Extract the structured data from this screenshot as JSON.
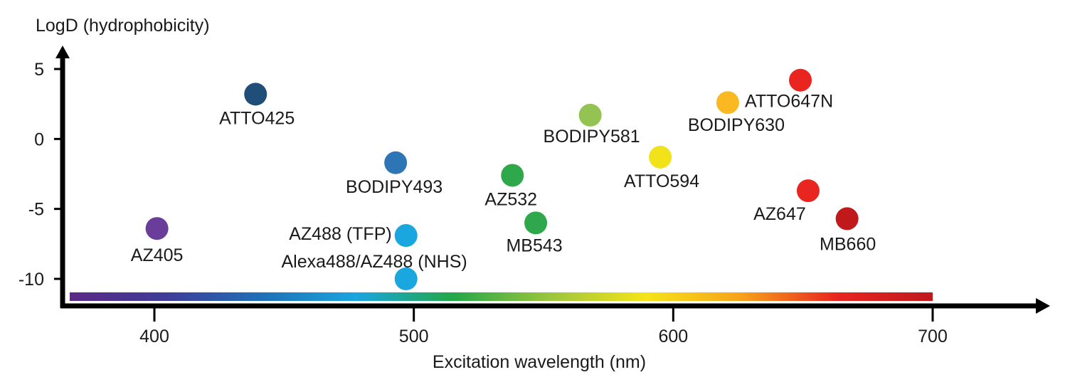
{
  "chart_data": {
    "type": "scatter",
    "xlabel": "Excitation wavelength (nm)",
    "ylabel": "LogD (hydrophobicity)",
    "xlim": [
      365,
      745
    ],
    "ylim": [
      -12,
      6
    ],
    "x_ticks": [
      400,
      500,
      600,
      700
    ],
    "y_ticks": [
      5,
      0,
      -5,
      -10
    ],
    "grid": false,
    "spectrum_bar": {
      "x_range": [
        365,
        700
      ],
      "colors": [
        "#5b2a86",
        "#3f3c99",
        "#1f6fb8",
        "#1aa6df",
        "#23a748",
        "#9bc53d",
        "#f5e419",
        "#f7a21b",
        "#e8251f",
        "#c0191c"
      ]
    },
    "points": [
      {
        "label": "AZ405",
        "x": 401,
        "y": -6.4,
        "color": "#6a3d9a"
      },
      {
        "label": "ATTO425",
        "x": 439,
        "y": 3.2,
        "color": "#1f4e79"
      },
      {
        "label": "BODIPY493",
        "x": 493,
        "y": -1.7,
        "color": "#2e75b6"
      },
      {
        "label": "AZ488 (TFP)",
        "x": 497,
        "y": -6.9,
        "color": "#1aa7e0"
      },
      {
        "label": "Alexa488/AZ488 (NHS)",
        "x": 497,
        "y": -10.0,
        "color": "#1aa7e0"
      },
      {
        "label": "AZ532",
        "x": 538,
        "y": -2.6,
        "color": "#2ea84a"
      },
      {
        "label": "MB543",
        "x": 547,
        "y": -6.0,
        "color": "#2ea84a"
      },
      {
        "label": "BODIPY581",
        "x": 568,
        "y": 1.7,
        "color": "#92c353"
      },
      {
        "label": "ATTO594",
        "x": 595,
        "y": -1.3,
        "color": "#f2e21a"
      },
      {
        "label": "BODIPY630",
        "x": 621,
        "y": 2.6,
        "color": "#fbb921"
      },
      {
        "label": "ATTO647N",
        "x": 649,
        "y": 4.2,
        "color": "#e8251f"
      },
      {
        "label": "AZ647",
        "x": 652,
        "y": -3.7,
        "color": "#e8251f"
      },
      {
        "label": "MB660",
        "x": 667,
        "y": -5.7,
        "color": "#c0191c"
      }
    ]
  }
}
